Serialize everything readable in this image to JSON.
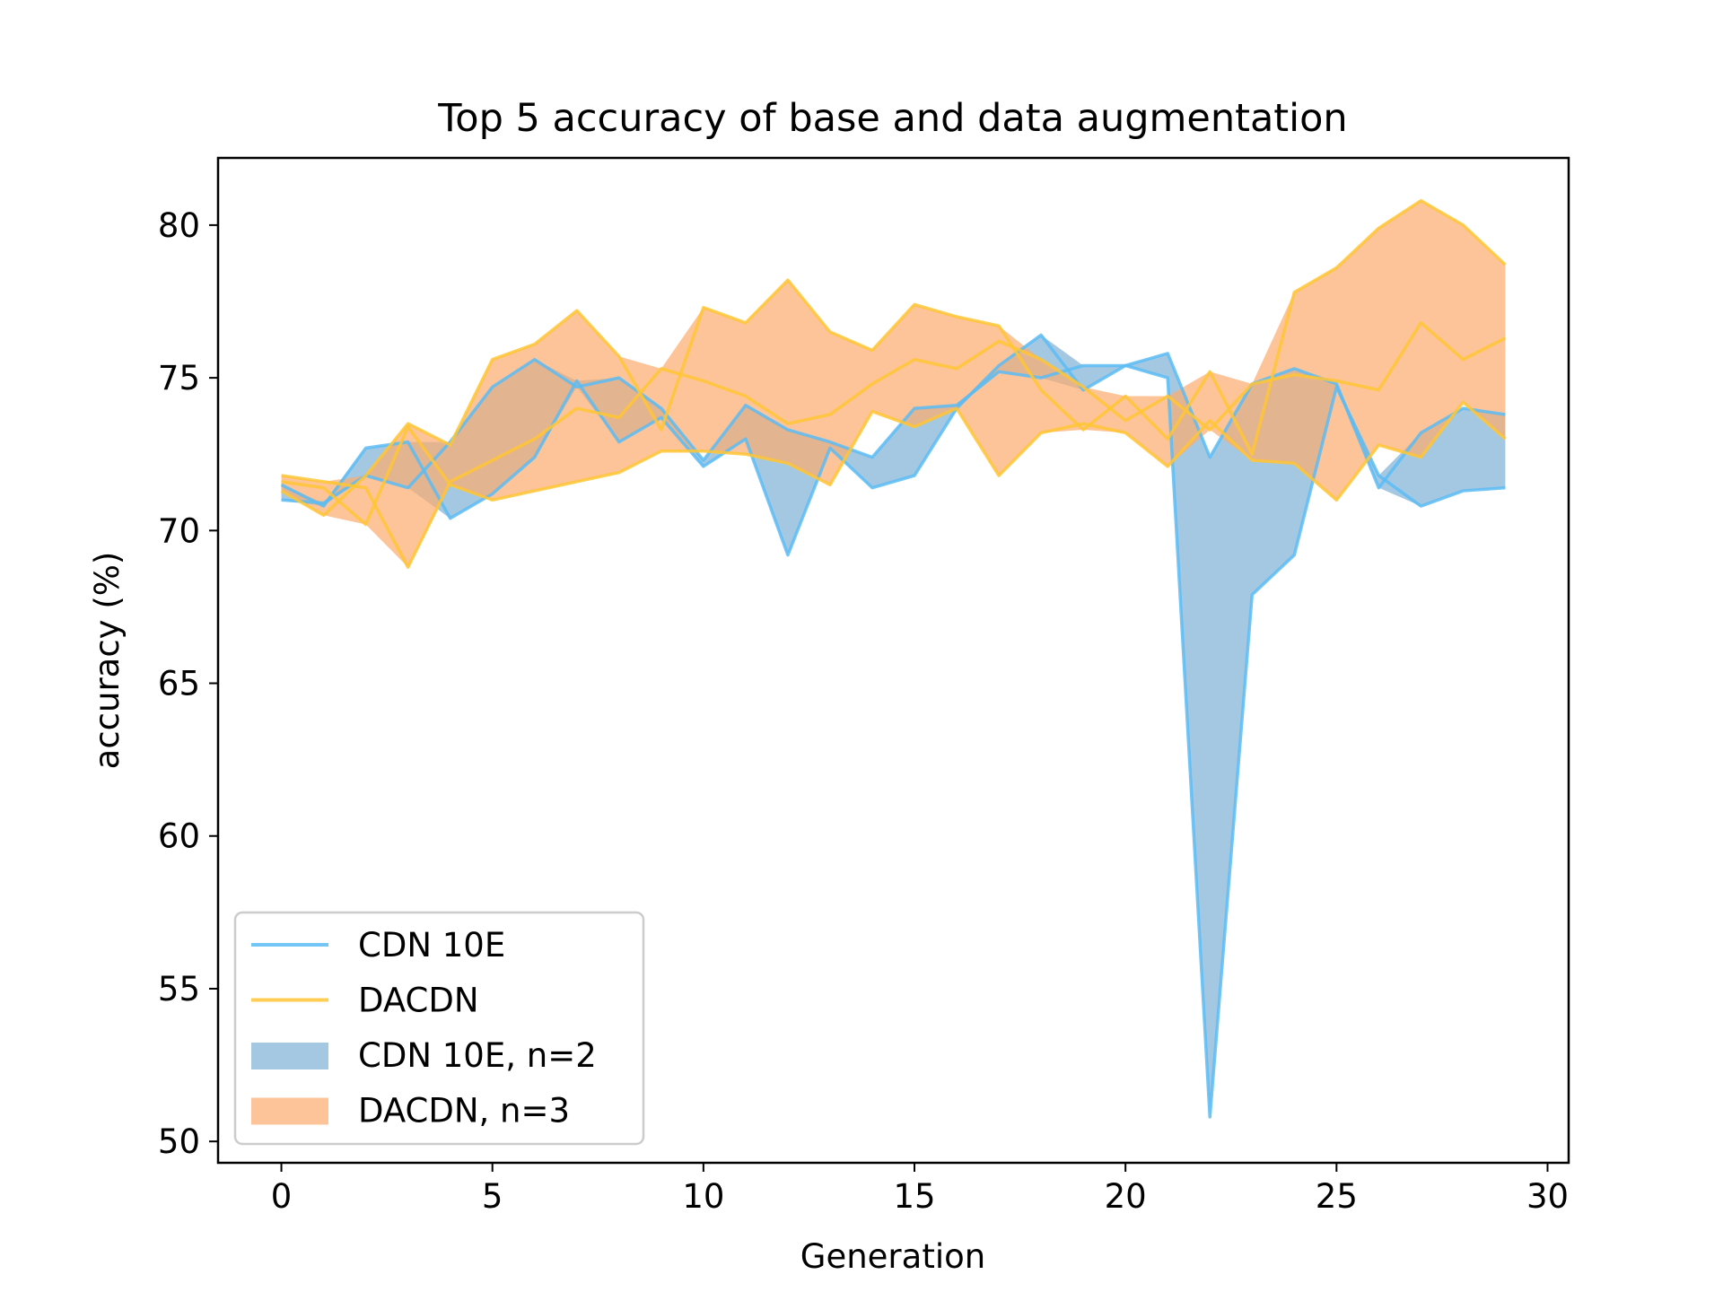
{
  "chart_data": {
    "type": "line",
    "title": "Top 5 accuracy of base and data augmentation",
    "xlabel": "Generation",
    "ylabel": "accuracy (%)",
    "xlim": [
      -1.5,
      30.5
    ],
    "ylim": [
      49.3,
      82.2
    ],
    "xticks": [
      0,
      5,
      10,
      15,
      20,
      25,
      30
    ],
    "yticks": [
      50,
      55,
      60,
      65,
      70,
      75,
      80
    ],
    "grid": false,
    "legend_position": "lower-left",
    "x": [
      0,
      1,
      2,
      3,
      4,
      5,
      6,
      7,
      8,
      9,
      10,
      11,
      12,
      13,
      14,
      15,
      16,
      17,
      18,
      19,
      20,
      21,
      22,
      23,
      24,
      25,
      26,
      27,
      28,
      29
    ],
    "colors": {
      "cdn_line": "#5bbcf5",
      "dacdn_line": "#ffc634",
      "cdn_band": "#7fb0d6",
      "dacdn_band": "#fdab6d"
    },
    "series": [
      {
        "name": "CDN 10E",
        "kind": "line",
        "values": [
          71.5,
          70.8,
          72.7,
          72.9,
          70.4,
          71.2,
          72.4,
          74.9,
          72.9,
          73.7,
          72.1,
          73.0,
          69.2,
          72.7,
          71.4,
          71.8,
          74.0,
          75.4,
          76.4,
          74.6,
          75.4,
          75.8,
          72.4,
          74.8,
          75.3,
          74.8,
          71.4,
          73.2,
          74.0,
          73.8
        ]
      },
      {
        "name": "CDN 10E",
        "kind": "line",
        "values": [
          71.0,
          70.9,
          71.8,
          71.4,
          72.9,
          74.7,
          75.6,
          74.7,
          75.0,
          74.0,
          72.3,
          74.1,
          73.3,
          72.9,
          72.4,
          74.0,
          74.1,
          75.2,
          75.0,
          75.4,
          75.4,
          75.0,
          50.8,
          67.9,
          69.2,
          74.7,
          71.8,
          70.8,
          71.3,
          71.4
        ]
      },
      {
        "name": "DACDN",
        "kind": "line",
        "values": [
          71.8,
          71.6,
          71.4,
          68.8,
          71.6,
          72.3,
          73.0,
          74.0,
          73.7,
          75.3,
          74.9,
          74.4,
          73.5,
          73.8,
          74.8,
          75.6,
          75.3,
          76.2,
          75.6,
          74.7,
          73.6,
          74.4,
          73.3,
          74.8,
          75.1,
          74.9,
          74.6,
          76.8,
          75.6,
          76.3
        ]
      },
      {
        "name": "DACDN",
        "kind": "line",
        "values": [
          71.3,
          70.5,
          71.8,
          73.5,
          72.8,
          75.6,
          76.1,
          77.2,
          75.7,
          73.3,
          77.3,
          76.8,
          78.2,
          76.5,
          75.9,
          77.4,
          77.0,
          76.7,
          74.6,
          73.3,
          74.4,
          73.0,
          75.2,
          72.5,
          77.8,
          78.6,
          79.9,
          80.8,
          80.0,
          78.7
        ]
      },
      {
        "name": "DACDN",
        "kind": "line",
        "values": [
          71.6,
          71.4,
          70.2,
          73.4,
          71.5,
          71.0,
          71.3,
          71.6,
          71.9,
          72.6,
          72.6,
          72.5,
          72.2,
          71.5,
          73.9,
          73.4,
          74.0,
          71.8,
          73.2,
          73.5,
          73.2,
          72.1,
          73.6,
          72.3,
          72.2,
          71.0,
          72.8,
          72.4,
          74.2,
          73.0
        ]
      },
      {
        "name": "CDN 10E, n=2",
        "kind": "band",
        "lower": [
          71.0,
          70.8,
          71.8,
          71.4,
          70.4,
          71.2,
          72.4,
          74.7,
          72.9,
          73.7,
          72.1,
          73.0,
          69.2,
          72.7,
          71.4,
          71.8,
          74.0,
          75.2,
          75.0,
          74.6,
          75.4,
          75.0,
          50.8,
          67.9,
          69.2,
          74.7,
          71.4,
          70.8,
          71.3,
          71.4
        ],
        "upper": [
          71.5,
          70.9,
          72.7,
          72.9,
          72.9,
          74.7,
          75.6,
          74.9,
          75.0,
          74.0,
          72.3,
          74.1,
          73.3,
          72.9,
          72.4,
          74.0,
          74.1,
          75.4,
          76.4,
          75.4,
          75.4,
          75.8,
          72.4,
          74.8,
          75.3,
          74.8,
          71.8,
          73.2,
          74.0,
          73.8
        ]
      },
      {
        "name": "DACDN, n=3",
        "kind": "band",
        "lower": [
          71.3,
          70.5,
          70.2,
          68.8,
          71.5,
          71.0,
          71.3,
          71.6,
          71.9,
          72.6,
          72.6,
          72.5,
          72.2,
          71.5,
          73.9,
          73.4,
          74.0,
          71.8,
          73.2,
          73.3,
          73.2,
          72.1,
          73.3,
          72.3,
          72.2,
          71.0,
          72.8,
          72.4,
          74.2,
          73.0
        ],
        "upper": [
          71.8,
          71.6,
          71.8,
          73.5,
          72.8,
          75.6,
          76.1,
          77.2,
          75.7,
          75.3,
          77.3,
          76.8,
          78.2,
          76.5,
          75.9,
          77.4,
          77.0,
          76.7,
          75.6,
          74.7,
          74.4,
          74.4,
          75.2,
          74.8,
          77.8,
          78.6,
          79.9,
          80.8,
          80.0,
          78.7
        ]
      }
    ],
    "legend": [
      {
        "label": "CDN 10E",
        "kind": "line",
        "color_key": "cdn_line"
      },
      {
        "label": "DACDN",
        "kind": "line",
        "color_key": "dacdn_line"
      },
      {
        "label": "CDN 10E, n=2",
        "kind": "band",
        "color_key": "cdn_band"
      },
      {
        "label": "DACDN, n=3",
        "kind": "band",
        "color_key": "dacdn_band"
      }
    ]
  }
}
